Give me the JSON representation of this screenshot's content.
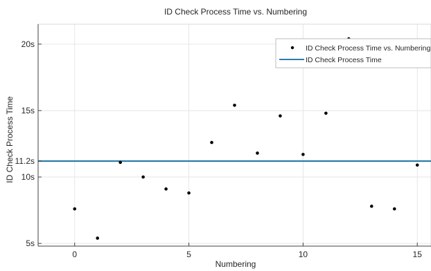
{
  "chart_data": {
    "type": "scatter",
    "title": "ID Check Process Time vs. Numbering",
    "xlabel": "Numbering",
    "ylabel": "ID Check Process Time",
    "xlim": [
      -1.6,
      15.6
    ],
    "ylim": [
      4.8,
      21.5
    ],
    "x_ticks": [
      0,
      5,
      10,
      15
    ],
    "x_tick_labels": [
      "0",
      "5",
      "10",
      "15"
    ],
    "y_ticks": [
      5,
      10,
      11.2,
      15,
      20
    ],
    "y_tick_labels": [
      "5s",
      "10s",
      "11.2s",
      "15s",
      "20s"
    ],
    "grid": true,
    "legend_position": "top-right",
    "series": [
      {
        "name": "ID Check Process Time vs. Numbering",
        "kind": "scatter",
        "color": "#000000",
        "x": [
          0,
          1,
          2,
          3,
          4,
          5,
          6,
          7,
          8,
          9,
          10,
          11,
          12,
          13,
          14,
          15
        ],
        "y": [
          7.6,
          5.4,
          11.1,
          10.0,
          9.1,
          8.8,
          12.6,
          15.4,
          11.8,
          14.6,
          11.7,
          14.8,
          20.4,
          7.8,
          7.6,
          10.9
        ]
      },
      {
        "name": "ID Check Process Time",
        "kind": "hline",
        "color": "#2e7ca8",
        "y": 11.2
      }
    ]
  }
}
